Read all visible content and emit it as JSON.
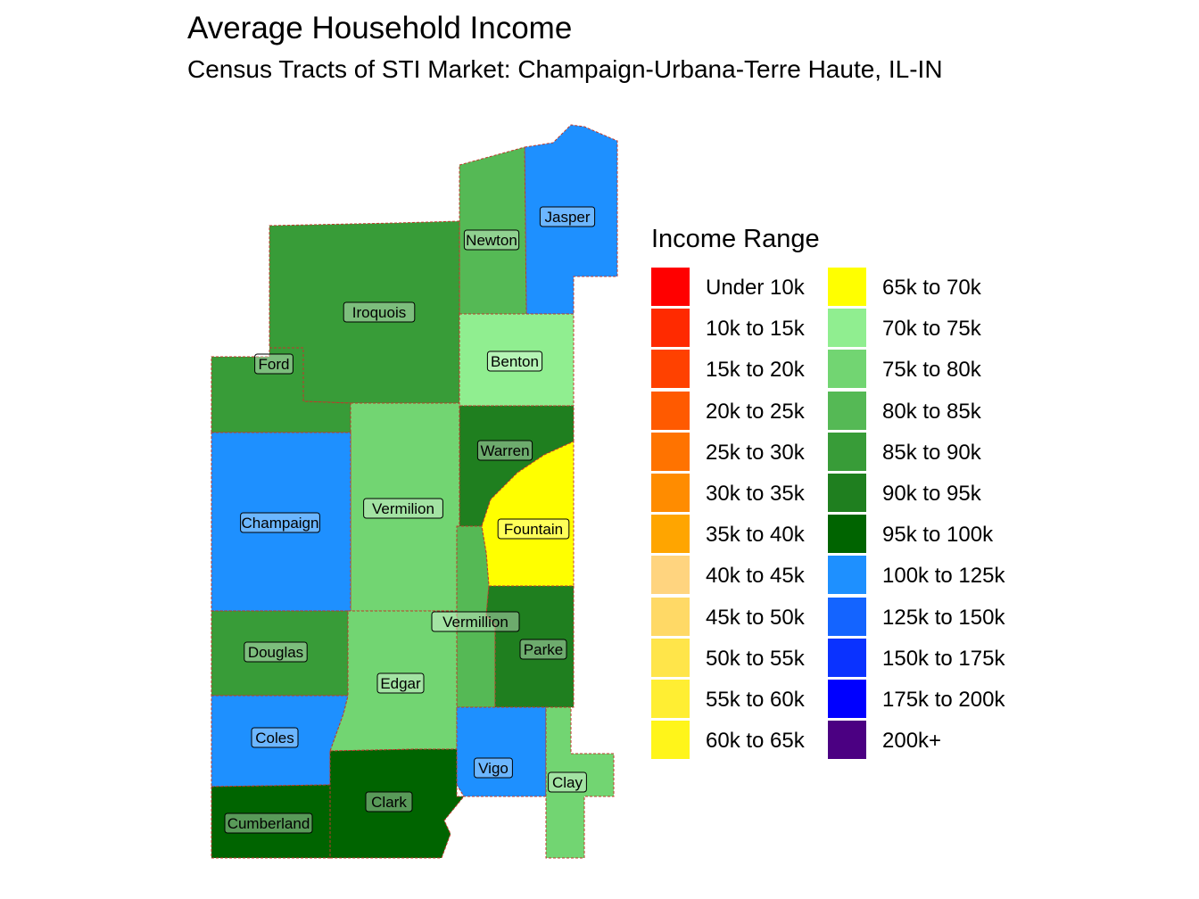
{
  "title": "Average Household Income",
  "subtitle": "Census Tracts of STI Market: Champaign-Urbana-Terre Haute, IL-IN",
  "legend": {
    "title": "Income Range",
    "items": [
      {
        "label": "Under 10k",
        "color": "#FF0000"
      },
      {
        "label": "10k to 15k",
        "color": "#FF2A00"
      },
      {
        "label": "15k to 20k",
        "color": "#FF4100"
      },
      {
        "label": "20k to 25k",
        "color": "#FF5A00"
      },
      {
        "label": "25k to 30k",
        "color": "#FF7300"
      },
      {
        "label": "30k to 35k",
        "color": "#FF8C00"
      },
      {
        "label": "35k to 40k",
        "color": "#FFA500"
      },
      {
        "label": "40k to 45k",
        "color": "#FFD47F"
      },
      {
        "label": "45k to 50k",
        "color": "#FFD966"
      },
      {
        "label": "50k to 55k",
        "color": "#FFE54A"
      },
      {
        "label": "55k to 60k",
        "color": "#FFEE33"
      },
      {
        "label": "60k to 65k",
        "color": "#FFF51A"
      },
      {
        "label": "65k to 70k",
        "color": "#FFFF00"
      },
      {
        "label": "70k to 75k",
        "color": "#90EE90"
      },
      {
        "label": "75k to 80k",
        "color": "#72D572"
      },
      {
        "label": "80k to 85k",
        "color": "#55B955"
      },
      {
        "label": "85k to 90k",
        "color": "#389C38"
      },
      {
        "label": "90k to 95k",
        "color": "#1F7F1F"
      },
      {
        "label": "95k to 100k",
        "color": "#006400"
      },
      {
        "label": "100k to 125k",
        "color": "#1E90FF"
      },
      {
        "label": "125k to 150k",
        "color": "#1464FF"
      },
      {
        "label": "150k to 175k",
        "color": "#0A32FF"
      },
      {
        "label": "175k to 200k",
        "color": "#0000FF"
      },
      {
        "label": "200k+",
        "color": "#4B0082"
      }
    ]
  },
  "counties": [
    {
      "name": "Jasper",
      "color": "#1E90FF"
    },
    {
      "name": "Newton",
      "color": "#55B955"
    },
    {
      "name": "Iroquois",
      "color": "#389C38"
    },
    {
      "name": "Benton",
      "color": "#90EE90"
    },
    {
      "name": "Ford",
      "color": "#389C38"
    },
    {
      "name": "Warren",
      "color": "#1F7F1F"
    },
    {
      "name": "Vermilion",
      "color": "#72D572"
    },
    {
      "name": "Champaign",
      "color": "#1E90FF"
    },
    {
      "name": "Fountain",
      "color": "#FFFF00"
    },
    {
      "name": "Vermillion",
      "color": "#55B955"
    },
    {
      "name": "Parke",
      "color": "#1F7F1F"
    },
    {
      "name": "Douglas",
      "color": "#389C38"
    },
    {
      "name": "Edgar",
      "color": "#72D572"
    },
    {
      "name": "Coles",
      "color": "#1E90FF"
    },
    {
      "name": "Vigo",
      "color": "#1E90FF"
    },
    {
      "name": "Clay",
      "color": "#72D572"
    },
    {
      "name": "Clark",
      "color": "#006400"
    },
    {
      "name": "Cumberland",
      "color": "#006400"
    }
  ]
}
